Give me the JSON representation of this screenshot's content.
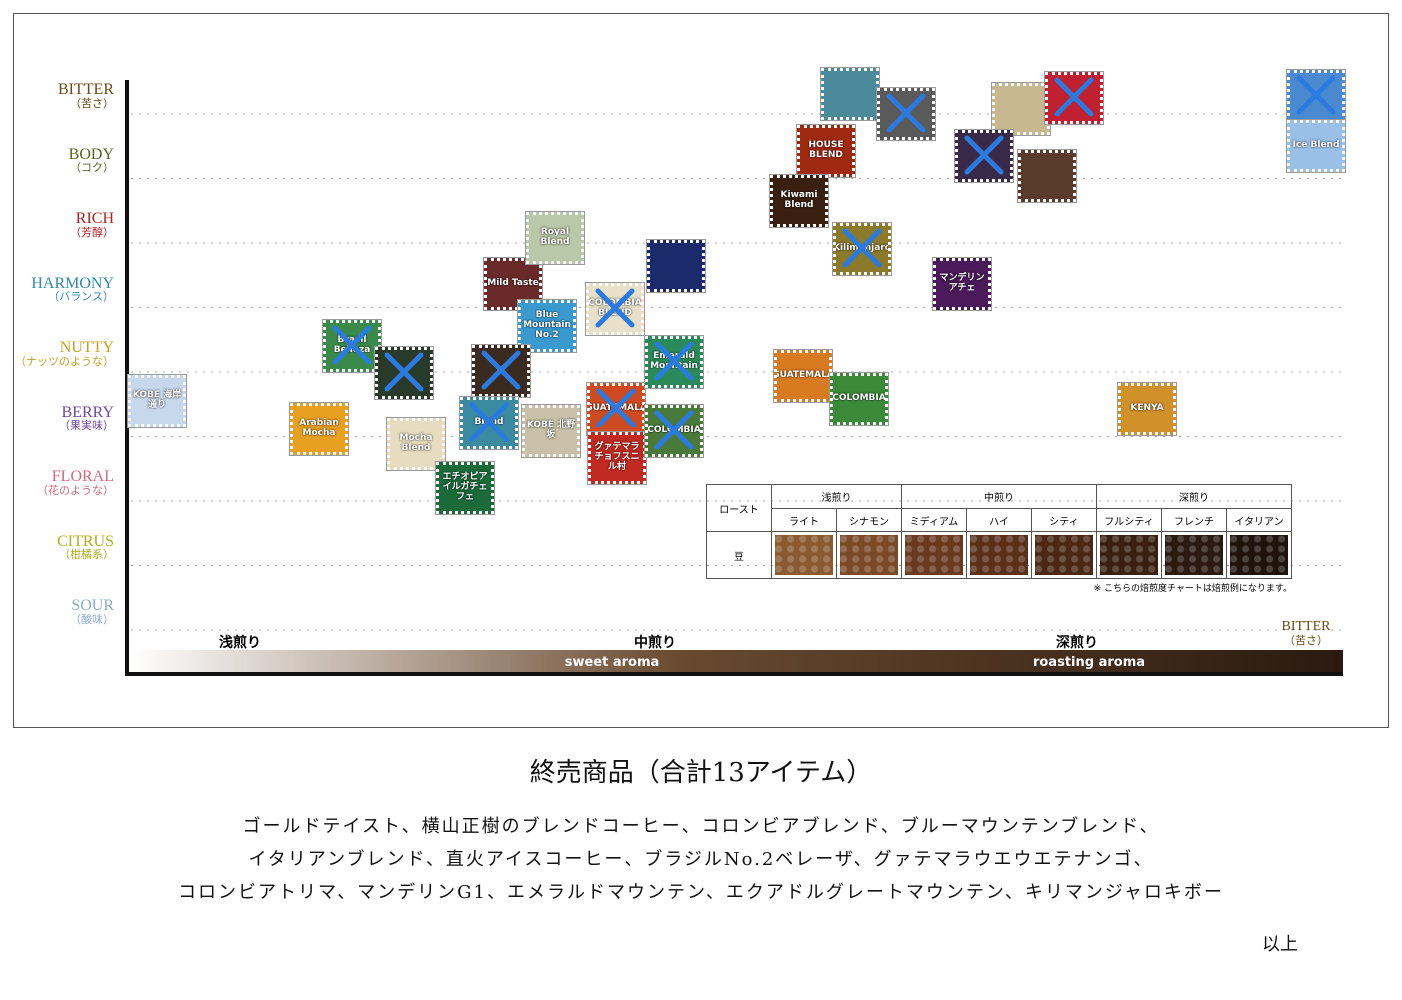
{
  "flavors": [
    {
      "en": "BITTER",
      "ja": "（苦さ）",
      "color": "#6b4a1a"
    },
    {
      "en": "BODY",
      "ja": "（コク）",
      "color": "#5a6420"
    },
    {
      "en": "RICH",
      "ja": "（芳醇）",
      "color": "#b02020"
    },
    {
      "en": "HARMONY",
      "ja": "（バランス）",
      "color": "#2a8ab0"
    },
    {
      "en": "NUTTY",
      "ja": "（ナッツのような）",
      "color": "#c8a020"
    },
    {
      "en": "BERRY",
      "ja": "（果実味）",
      "color": "#6a4a9a"
    },
    {
      "en": "FLORAL",
      "ja": "（花のような）",
      "color": "#d06a7a"
    },
    {
      "en": "CITRUS",
      "ja": "（柑橘系）",
      "color": "#b0b020"
    },
    {
      "en": "SOUR",
      "ja": "（酸味）",
      "color": "#8aaad0"
    }
  ],
  "roast": {
    "levels": [
      "浅煎り",
      "中煎り",
      "深煎り"
    ],
    "aroma": [
      "sweet aroma",
      "roasting aroma"
    ],
    "end_en": "BITTER",
    "end_ja": "（苦さ）"
  },
  "products": [
    {
      "label": "KOBE 海岸通り",
      "color": "#c8d8ec",
      "discontinued": false
    },
    {
      "label": "Arabian Mocha",
      "color": "#e8a020",
      "discontinued": false
    },
    {
      "label": "Brasil Belleza",
      "color": "#3a8a4a",
      "discontinued": true
    },
    {
      "color": "#2a3a2a",
      "discontinued": true
    },
    {
      "label": "Mocha Blend",
      "color": "#e8dcc0",
      "discontinued": false
    },
    {
      "label": "エチオピア イルガチェフェ",
      "color": "#1a6a3a",
      "discontinued": false
    },
    {
      "label": "Mild Taste",
      "color": "#6a2a2a",
      "discontinued": false
    },
    {
      "label": "Royal Blend",
      "color": "#b8c8a8",
      "discontinued": false
    },
    {
      "label": "Blue Mountain No.2",
      "color": "#3a9ad0",
      "discontinued": false
    },
    {
      "color": "#3a2a20",
      "discontinued": true
    },
    {
      "label": "Blend",
      "color": "#3a8aa0",
      "discontinued": true
    },
    {
      "label": "KOBE 北野坂",
      "color": "#c8c0a8",
      "discontinued": false
    },
    {
      "label": "COLOMBIA BLEND",
      "color": "#e8e0c8",
      "discontinued": true
    },
    {
      "label": "GUATEMALA",
      "color": "#d04a20",
      "discontinued": true
    },
    {
      "label": "グァテマラ チョフスニル村",
      "color": "#c02a20",
      "discontinued": false
    },
    {
      "color": "#1a2a6a",
      "discontinued": false
    },
    {
      "label": "Emerald Mountain",
      "color": "#2a8a5a",
      "discontinued": true
    },
    {
      "label": "COLOMBIA",
      "color": "#4a7a3a",
      "discontinued": true
    },
    {
      "label": "HOUSE BLEND",
      "color": "#a02a10",
      "discontinued": false
    },
    {
      "label": "Kiwami Blend",
      "color": "#3a2010",
      "discontinued": false
    },
    {
      "color": "#4a8a9a",
      "discontinued": false
    },
    {
      "color": "#5a5a5a",
      "discontinued": true
    },
    {
      "label": "Kilimanjaro",
      "color": "#8a7a2a",
      "discontinued": true
    },
    {
      "label": "GUATEMALA",
      "color": "#d87a20",
      "discontinued": false
    },
    {
      "label": "COLOMBIA",
      "color": "#3a8a3a",
      "discontinued": false
    },
    {
      "label": "マンデリン アチェ",
      "color": "#4a1a5a",
      "discontinued": false
    },
    {
      "color": "#c8b890",
      "discontinued": false
    },
    {
      "color": "#c02030",
      "discontinued": true
    },
    {
      "color": "#3a2a4a",
      "discontinued": true
    },
    {
      "color": "#5a3a2a",
      "discontinued": false
    },
    {
      "label": "KENYA",
      "color": "#d0902a",
      "discontinued": false
    },
    {
      "color": "#4a8ad0",
      "discontinued": true
    },
    {
      "label": "Ice Blend",
      "color": "#9ac0e8",
      "discontinued": false
    }
  ],
  "table": {
    "header": "ロースト",
    "groups": [
      "浅煎り",
      "中煎り",
      "深煎り"
    ],
    "levels": [
      "ライト",
      "シナモン",
      "ミディアム",
      "ハイ",
      "シティ",
      "フルシティ",
      "フレンチ",
      "イタリアン"
    ],
    "row": "豆",
    "note": "※ こちらの焙煎度チャートは焙煎例になります。"
  },
  "footer": {
    "title": "終売商品（合計13アイテム）",
    "lines": [
      "ゴールドテイスト、横山正樹のブレンドコーヒー、コロンビアブレンド、ブルーマウンテンブレンド、",
      "イタリアンブレンド、直火アイスコーヒー、ブラジルNo.2ベレーザ、グァテマラウエウエテナンゴ、",
      "コロンビアトリマ、マンデリンG1、エメラルドマウンテン、エクアドルグレートマウンテン、キリマンジャロキボー"
    ],
    "end": "以上"
  }
}
